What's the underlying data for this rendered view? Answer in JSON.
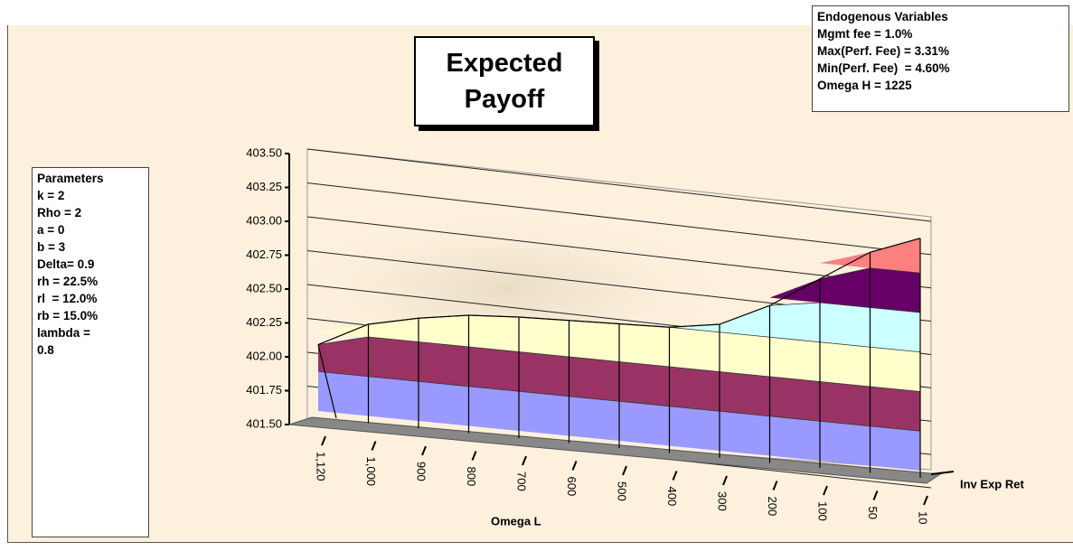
{
  "chart_data": {
    "type": "surface",
    "title": "Expected Payoff",
    "x_label": "Omega L",
    "depth_label": "Inv Exp Ret",
    "categories": [
      "1,120",
      "1,000",
      "900",
      "800",
      "700",
      "600",
      "500",
      "400",
      "300",
      "200",
      "100",
      "50",
      "10"
    ],
    "values": [
      401.92,
      402.08,
      402.15,
      402.2,
      402.22,
      402.23,
      402.24,
      402.25,
      402.3,
      402.45,
      402.65,
      402.85,
      402.97
    ],
    "ylim": [
      401.5,
      403.5
    ],
    "yticks": [
      {
        "value": 401.5,
        "label": "401.50"
      },
      {
        "value": 401.75,
        "label": "401.75"
      },
      {
        "value": 402,
        "label": "402.00"
      },
      {
        "value": 402.25,
        "label": "402.25"
      },
      {
        "value": 402.5,
        "label": "402.50"
      },
      {
        "value": 402.75,
        "label": "402.75"
      },
      {
        "value": 403,
        "label": "403.00"
      },
      {
        "value": 403.25,
        "label": "403.25"
      },
      {
        "value": 403.5,
        "label": "403.50"
      }
    ],
    "band_colors": [
      "#9999ff",
      "#993366",
      "#ffffcc",
      "#ccffff",
      "#660066",
      "#ff8080",
      "#0066cc",
      "#003399"
    ],
    "grid": true
  },
  "parameters": {
    "title": "Parameters",
    "lines": [
      "k = 2",
      "Rho = 2",
      "a = 0",
      "b = 3",
      "Delta= 0.9",
      "rh = 22.5%",
      "rl  = 12.0%",
      "rb = 15.0%",
      "lambda =",
      "0.8"
    ]
  },
  "endogenous": {
    "title": "Endogenous Variables",
    "lines": [
      "Mgmt fee = 1.0%",
      "Max(Perf. Fee) = 3.31%",
      "Min(Perf. Fee)  = 4.60%",
      "Omega H = 1225"
    ]
  }
}
